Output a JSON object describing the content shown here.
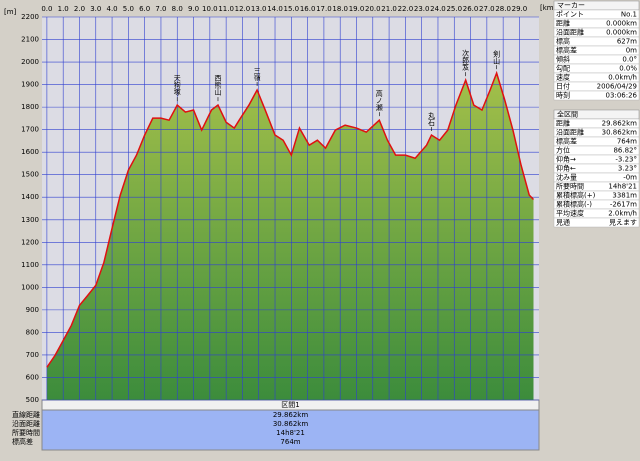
{
  "chart_data": {
    "type": "area",
    "y_label": "[m]",
    "x_label": "[km]",
    "x": [
      0,
      0.5,
      1.0,
      1.5,
      2.0,
      2.5,
      3.0,
      3.5,
      4.0,
      4.5,
      5.0,
      5.5,
      6.0,
      6.5,
      7.0,
      7.5,
      8.0,
      8.5,
      9.0,
      9.5,
      10.1,
      10.5,
      11.0,
      11.5,
      11.8,
      12.4,
      12.9,
      13.4,
      14.0,
      14.5,
      15.0,
      15.5,
      16.1,
      16.6,
      17.1,
      17.7,
      18.3,
      19.0,
      19.6,
      20.4,
      20.9,
      21.4,
      22.0,
      22.6,
      23.3,
      23.6,
      24.1,
      24.6,
      25.1,
      25.7,
      26.2,
      26.7,
      27.2,
      27.6,
      28.1,
      28.6,
      29.1,
      29.6,
      29.862
    ],
    "series": [
      {
        "name": "標高",
        "color": "#e01010",
        "values": [
          645,
          698,
          764,
          831,
          920,
          964,
          1009,
          1111,
          1262,
          1409,
          1520,
          1587,
          1676,
          1751,
          1751,
          1742,
          1809,
          1778,
          1787,
          1698,
          1787,
          1809,
          1733,
          1707,
          1742,
          1809,
          1876,
          1787,
          1676,
          1653,
          1587,
          1707,
          1631,
          1653,
          1618,
          1698,
          1720,
          1707,
          1689,
          1742,
          1653,
          1587,
          1587,
          1573,
          1631,
          1676,
          1653,
          1698,
          1809,
          1920,
          1809,
          1787,
          1876,
          1951,
          1831,
          1698,
          1542,
          1410,
          1390
        ]
      }
    ],
    "annotations": [
      {
        "x": 8.0,
        "text": "天狗塚"
      },
      {
        "x": 10.5,
        "text": "西熊山"
      },
      {
        "x": 12.9,
        "text": "三嶺"
      },
      {
        "x": 20.4,
        "text": "高ノ瀬"
      },
      {
        "x": 23.6,
        "text": "丸石"
      },
      {
        "x": 25.7,
        "text": "次郎笈"
      },
      {
        "x": 27.6,
        "text": "剣山"
      }
    ],
    "xlim": [
      -0.3,
      30.2
    ],
    "ylim": [
      500,
      2200
    ],
    "xticks": [
      {
        "value": 0,
        "label": "0.0"
      },
      {
        "value": 1,
        "label": "1.0"
      },
      {
        "value": 2,
        "label": "2.0"
      },
      {
        "value": 3,
        "label": "3.0"
      },
      {
        "value": 4,
        "label": "4.0"
      },
      {
        "value": 5,
        "label": "5.0"
      },
      {
        "value": 6,
        "label": "6.0"
      },
      {
        "value": 7,
        "label": "7.0"
      },
      {
        "value": 8,
        "label": "8.0"
      },
      {
        "value": 9,
        "label": "9.0"
      },
      {
        "value": 10,
        "label": "10.0"
      },
      {
        "value": 11,
        "label": "11.0"
      },
      {
        "value": 12,
        "label": "12.0"
      },
      {
        "value": 13,
        "label": "13.0"
      },
      {
        "value": 14,
        "label": "14.0"
      },
      {
        "value": 15,
        "label": "15.0"
      },
      {
        "value": 16,
        "label": "16.0"
      },
      {
        "value": 17,
        "label": "17.0"
      },
      {
        "value": 18,
        "label": "18.0"
      },
      {
        "value": 19,
        "label": "19.0"
      },
      {
        "value": 20,
        "label": "20.0"
      },
      {
        "value": 21,
        "label": "21.0"
      },
      {
        "value": 22,
        "label": "22.0"
      },
      {
        "value": 23,
        "label": "23.0"
      },
      {
        "value": 24,
        "label": "24.0"
      },
      {
        "value": 25,
        "label": "25.0"
      },
      {
        "value": 26,
        "label": "26.0"
      },
      {
        "value": 27,
        "label": "27.0"
      },
      {
        "value": 28,
        "label": "28.0"
      },
      {
        "value": 29,
        "label": "29.0"
      }
    ],
    "yticks": [
      500,
      600,
      700,
      800,
      900,
      1000,
      1100,
      1200,
      1300,
      1400,
      1500,
      1600,
      1700,
      1800,
      1900,
      2000,
      2100,
      2200
    ],
    "grid": true
  },
  "section_panel": {
    "title": "区間1",
    "rows": [
      [
        "直線距離",
        "29.862km"
      ],
      [
        "沿面距離",
        "30.862km"
      ],
      [
        "所要時間",
        "14h8'21"
      ],
      [
        "標高差",
        "764m"
      ]
    ]
  },
  "marker_panel": {
    "title": "マーカー",
    "rows": [
      [
        "ポイント",
        "No.1"
      ],
      [
        "距離",
        "0.000km"
      ],
      [
        "沿面距離",
        "0.000km"
      ],
      [
        "標高",
        "627m"
      ],
      [
        "標高差",
        "0m"
      ],
      [
        "傾斜",
        "0.0°"
      ],
      [
        "勾配",
        "0.0%"
      ],
      [
        "速度",
        "0.0km/h"
      ],
      [
        "日付",
        "2006/04/29"
      ],
      [
        "時刻",
        "03:06:26"
      ]
    ]
  },
  "total_panel": {
    "title": "全区間",
    "rows": [
      [
        "距離",
        "29.862km"
      ],
      [
        "沿面距離",
        "30.862km"
      ],
      [
        "標高差",
        "764m"
      ],
      [
        "方位",
        "86.82°"
      ],
      [
        "仰角→",
        "-3.23°"
      ],
      [
        "仰角←",
        "3.23°"
      ],
      [
        "沈み量",
        "-0m"
      ],
      [
        "所要時間",
        "14h8'21"
      ],
      [
        "累積標高(+)",
        "3381m"
      ],
      [
        "累積標高(-)",
        "-2617m"
      ],
      [
        "平均速度",
        "2.0km/h"
      ],
      [
        "見通",
        "見えます"
      ]
    ]
  }
}
